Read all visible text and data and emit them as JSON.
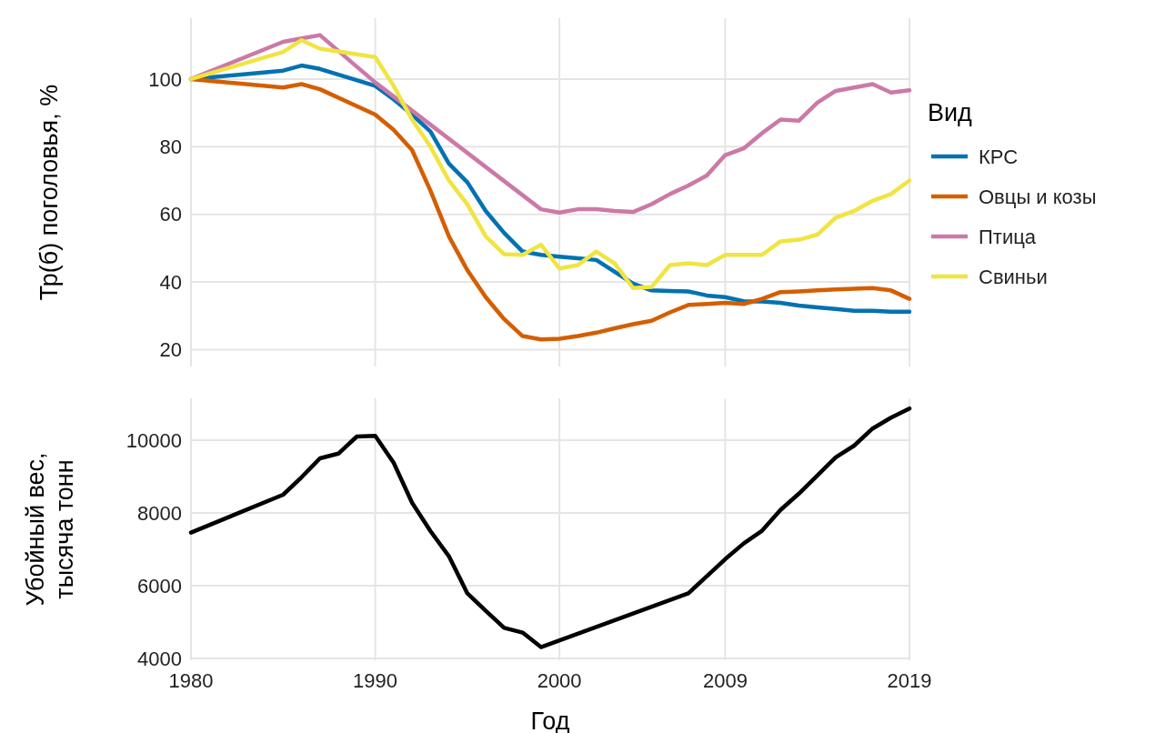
{
  "chart_data": [
    {
      "type": "line",
      "ylabel": "Тр(б) поголовья, %",
      "legend_title": "Вид",
      "legend": "right",
      "grid": true,
      "tick_labels": "y",
      "line_style": "solid",
      "xlim": [
        1980,
        2019
      ],
      "xticks": [
        1980,
        1990,
        2000,
        2009,
        2019
      ],
      "ylim": [
        15,
        118
      ],
      "yticks": [
        20,
        40,
        60,
        80,
        100
      ],
      "x": [
        1980,
        1985,
        1986,
        1987,
        1990,
        1991,
        1992,
        1993,
        1994,
        1995,
        1996,
        1997,
        1998,
        1999,
        2000,
        2001,
        2002,
        2003,
        2004,
        2005,
        2006,
        2007,
        2008,
        2009,
        2010,
        2011,
        2012,
        2013,
        2014,
        2015,
        2016,
        2017,
        2018,
        2019
      ],
      "series": [
        {
          "name": "КРС",
          "color": "#0072b2",
          "values": [
            100,
            102.5,
            104,
            103,
            98,
            94,
            89.5,
            84.5,
            75,
            69.5,
            61,
            54.5,
            49,
            48,
            47.5,
            47,
            46.5,
            43,
            39.5,
            37.5,
            37.3,
            37.2,
            36,
            35.5,
            34.3,
            34.2,
            33.8,
            33,
            32.5,
            32,
            31.5,
            31.5,
            31.2,
            31.2
          ]
        },
        {
          "name": "Овцы и козы",
          "color": "#d55e00",
          "values": [
            100,
            97.5,
            98.5,
            97,
            89.5,
            85,
            79,
            67,
            53.5,
            43.5,
            35.5,
            29,
            24,
            23,
            23.2,
            24,
            25,
            26.3,
            27.5,
            28.5,
            31,
            33.2,
            33.5,
            33.8,
            33.5,
            35,
            37,
            37.2,
            37.5,
            37.8,
            38,
            38.2,
            37.5,
            35
          ]
        },
        {
          "name": "Птица",
          "color": "#cc79a7",
          "values": [
            100,
            111,
            112,
            113,
            99,
            null,
            null,
            null,
            null,
            null,
            null,
            null,
            null,
            61.5,
            60.5,
            61.5,
            61.5,
            61,
            60.7,
            63,
            66,
            68.5,
            71.5,
            77.5,
            79.5,
            84,
            88,
            87.7,
            93,
            96.5,
            97.5,
            98.5,
            96,
            96.7
          ]
        },
        {
          "name": "Свиньи",
          "color": "#f0e442",
          "values": [
            100,
            108,
            111.5,
            109,
            106.5,
            98,
            88,
            80,
            70,
            63,
            53.5,
            48.2,
            48,
            51,
            44,
            45,
            49,
            45.5,
            38.2,
            38.5,
            45,
            45.5,
            45,
            48,
            48,
            48,
            52,
            52.5,
            54,
            59,
            61,
            64,
            66,
            70
          ]
        }
      ]
    },
    {
      "type": "line",
      "ylabel": "Убойный вес,\nтысяча тонн",
      "xlabel": "Год",
      "grid": true,
      "line_style": "solid",
      "xlim": [
        1980,
        2019
      ],
      "xticks": [
        1980,
        1990,
        2000,
        2009,
        2019
      ],
      "ylim": [
        3950,
        11150
      ],
      "yticks": [
        4000,
        6000,
        8000,
        10000
      ],
      "x": [
        1980,
        1985,
        1986,
        1987,
        1988,
        1989,
        1990,
        1991,
        1992,
        1993,
        1994,
        1995,
        1996,
        1997,
        1998,
        1999,
        2007,
        2008,
        2009,
        2010,
        2011,
        2012,
        2013,
        2014,
        2015,
        2016,
        2017,
        2018,
        2019
      ],
      "series": [
        {
          "color": "#000000",
          "values": [
            7460,
            8500,
            8980,
            9500,
            9630,
            10100,
            10120,
            9380,
            8280,
            7500,
            6810,
            5790,
            5310,
            4840,
            4710,
            4310,
            5790,
            6260,
            6730,
            7160,
            7510,
            8080,
            8530,
            9030,
            9530,
            9850,
            10320,
            10620,
            10870
          ]
        }
      ]
    }
  ]
}
